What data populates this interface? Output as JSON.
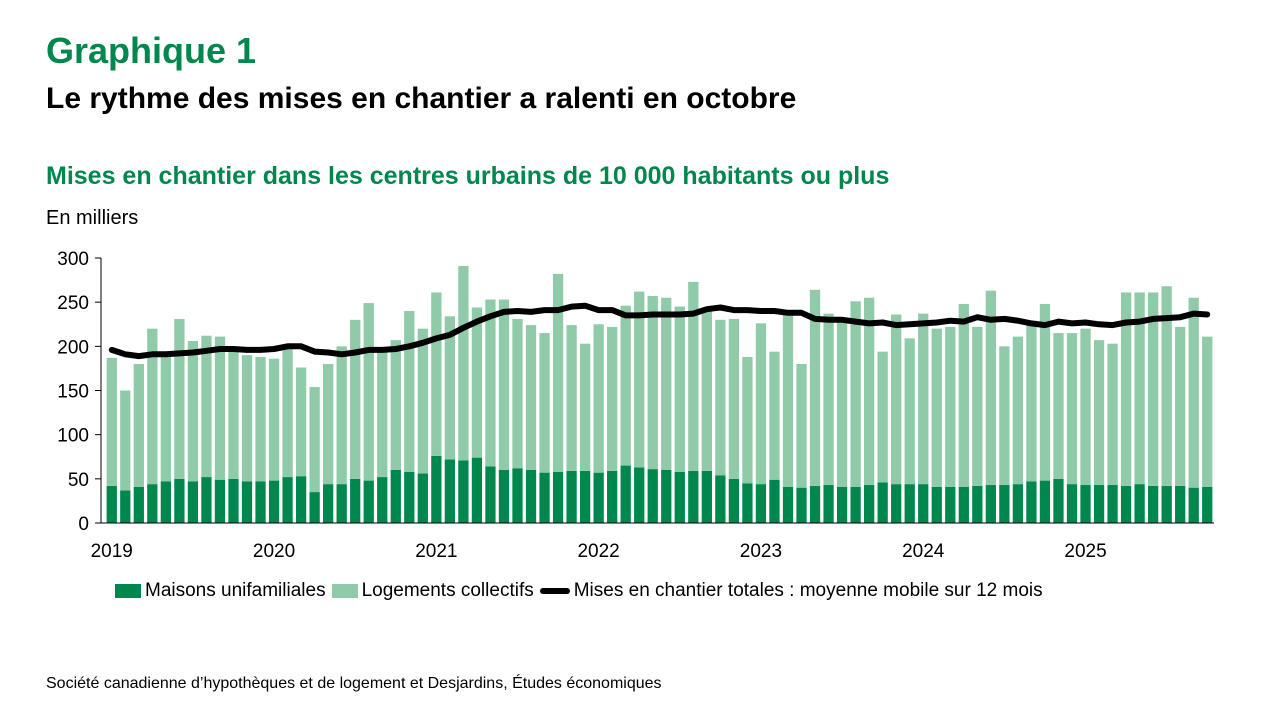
{
  "header": {
    "graph_number": "Graphique 1",
    "title": "Le rythme des mises en chantier a ralenti en octobre",
    "subtitle": "Mises en chantier dans les centres urbains de 10 000 habitants ou plus",
    "unit": "En milliers"
  },
  "source": "Société canadienne d’hypothèques et de logement et Desjardins, Études économiques",
  "colors": {
    "single": "#00874E",
    "multi": "#8FCAA9",
    "line": "#000000",
    "title": "#00874E"
  },
  "chart_data": {
    "type": "bar",
    "stacked": true,
    "title": "Mises en chantier dans les centres urbains de 10 000 habitants ou plus",
    "ylabel": "En milliers",
    "ylim": [
      0,
      300
    ],
    "yticks": [
      "0",
      "50",
      "100",
      "150",
      "200",
      "250",
      "300"
    ],
    "xtick_labels": [
      "2019",
      "2020",
      "2021",
      "2022",
      "2023",
      "2024",
      "2025"
    ],
    "start": "2019-01",
    "end": "2025-10",
    "legend": [
      "Maisons unifamiliales",
      "Logements collectifs",
      "Mises en chantier totales : moyenne mobile sur 12 mois"
    ],
    "legend_position": "bottom",
    "series": [
      {
        "name": "Maisons unifamiliales",
        "values": [
          42,
          37,
          41,
          44,
          47,
          50,
          47,
          52,
          49,
          50,
          47,
          47,
          48,
          52,
          53,
          35,
          44,
          44,
          50,
          48,
          52,
          60,
          58,
          56,
          76,
          72,
          71,
          74,
          64,
          60,
          62,
          60,
          57,
          58,
          59,
          59,
          57,
          59,
          65,
          63,
          61,
          60,
          58,
          59,
          59,
          54,
          50,
          45,
          44,
          49,
          41,
          40,
          42,
          43,
          41,
          41,
          43,
          46,
          44,
          44,
          44,
          41,
          41,
          41,
          42,
          43,
          43,
          44,
          47,
          48,
          50,
          44,
          43,
          43,
          43,
          42,
          44,
          42,
          42,
          42,
          40,
          41
        ]
      },
      {
        "name": "Logements collectifs",
        "values": [
          145,
          113,
          139,
          176,
          143,
          181,
          159,
          160,
          162,
          146,
          143,
          141,
          138,
          146,
          123,
          119,
          136,
          156,
          180,
          201,
          143,
          147,
          182,
          164,
          185,
          162,
          220,
          170,
          189,
          193,
          169,
          164,
          158,
          224,
          165,
          144,
          168,
          163,
          181,
          199,
          196,
          195,
          187,
          214,
          181,
          176,
          181,
          143,
          182,
          145,
          196,
          140,
          222,
          194,
          191,
          210,
          212,
          148,
          192,
          165,
          193,
          179,
          181,
          207,
          180,
          220,
          157,
          167,
          181,
          200,
          165,
          171,
          177,
          164,
          160,
          219,
          217,
          219,
          226,
          180,
          215,
          170
        ]
      },
      {
        "name": "Mises en chantier totales : moyenne mobile sur 12 mois",
        "type": "line",
        "values": [
          196,
          191,
          189,
          191,
          191,
          192,
          193,
          195,
          197,
          197,
          196,
          196,
          197,
          200,
          200,
          194,
          193,
          191,
          193,
          196,
          196,
          197,
          200,
          204,
          209,
          213,
          221,
          228,
          234,
          239,
          240,
          239,
          241,
          241,
          245,
          246,
          241,
          241,
          235,
          235,
          236,
          236,
          236,
          237,
          242,
          244,
          241,
          241,
          240,
          240,
          238,
          238,
          231,
          230,
          230,
          228,
          226,
          227,
          224,
          225,
          226,
          227,
          229,
          228,
          233,
          230,
          231,
          229,
          226,
          224,
          228,
          226,
          227,
          225,
          224,
          227,
          228,
          231,
          232,
          233,
          237,
          236
        ]
      }
    ]
  }
}
